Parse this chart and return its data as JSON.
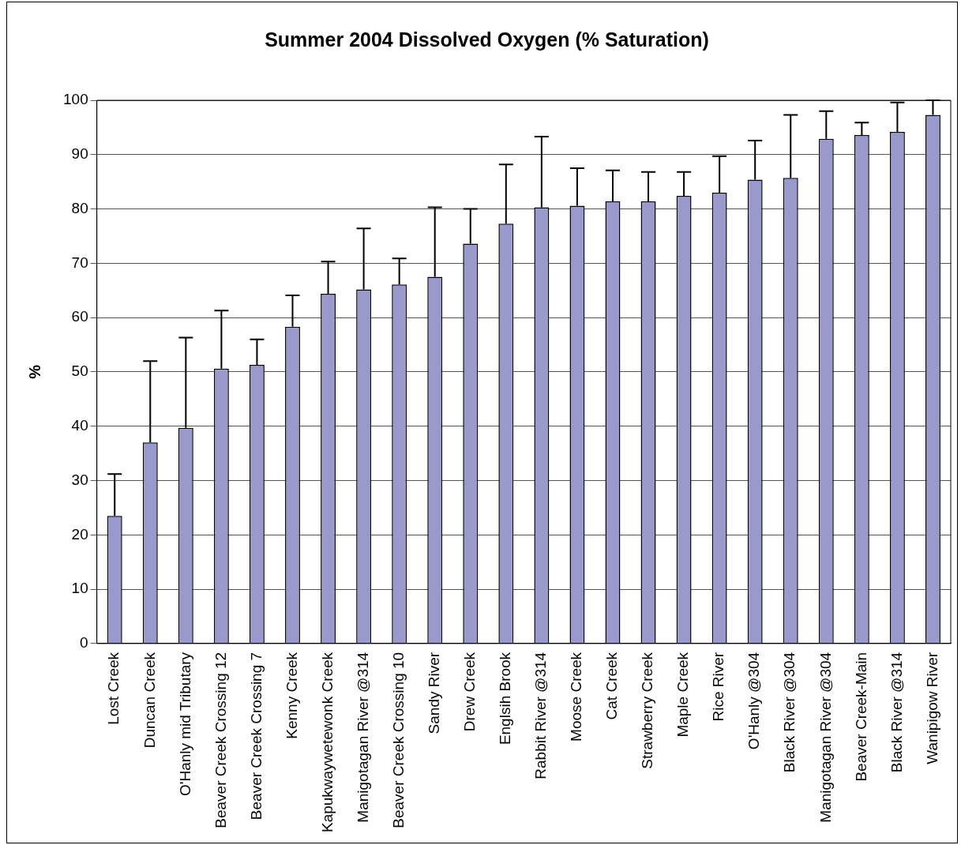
{
  "chart_data": {
    "type": "bar",
    "title": "Summer 2004 Dissolved Oxygen (% Saturation)",
    "ylabel": "%",
    "categories": [
      "Lost Creek",
      "Duncan Creek",
      "O'Hanly mid Tributary",
      "Beaver Creek Crossing 12",
      "Beaver Creek Crossing 7",
      "Kenny Creek",
      "Kapukwaywetewonk Creek",
      "Manigotagan River @314",
      "Beaver Creek Crossing 10",
      "Sandy River",
      "Drew Creek",
      "Englsih Brook",
      "Rabbit River @314",
      "Moose Creek",
      "Cat Creek",
      "Strawberry Creek",
      "Maple Creek",
      "Rice River",
      "O'Hanly @304",
      "Black River @304",
      "Manigotagan River @304",
      "Beaver Creek-Main",
      "Black River @314",
      "Wanipigow River"
    ],
    "values": [
      23.5,
      37,
      39.7,
      50.6,
      51.3,
      58.3,
      64.4,
      65.2,
      66.1,
      67.5,
      73.6,
      77.3,
      80.3,
      80.6,
      81.4,
      81.4,
      82.4,
      83.0,
      85.4,
      85.7,
      92.9,
      93.6,
      94.2,
      97.3
    ],
    "errors": [
      [
        23.5,
        31.2
      ],
      [
        37,
        52
      ],
      [
        39.7,
        56.3
      ],
      [
        50.6,
        61.3
      ],
      [
        51.3,
        56
      ],
      [
        58.3,
        64.1
      ],
      [
        64.4,
        70.3
      ],
      [
        65.2,
        76.4
      ],
      [
        66.1,
        70.9
      ],
      [
        67.5,
        80.3
      ],
      [
        73.6,
        80
      ],
      [
        77.3,
        88.2
      ],
      [
        80.3,
        93.3
      ],
      [
        80.6,
        87.5
      ],
      [
        81.4,
        87.1
      ],
      [
        81.4,
        86.8
      ],
      [
        82.4,
        86.8
      ],
      [
        83.0,
        89.7
      ],
      [
        85.4,
        92.6
      ],
      [
        85.7,
        97.3
      ],
      [
        92.9,
        98
      ],
      [
        93.6,
        95.9
      ],
      [
        94.2,
        99.6
      ],
      [
        97.3,
        100
      ]
    ],
    "color": "#9999cc",
    "ylim": [
      0,
      100
    ],
    "yticks": [
      0,
      10,
      20,
      30,
      40,
      50,
      60,
      70,
      80,
      90,
      100
    ],
    "grid": "y",
    "legend": false
  }
}
